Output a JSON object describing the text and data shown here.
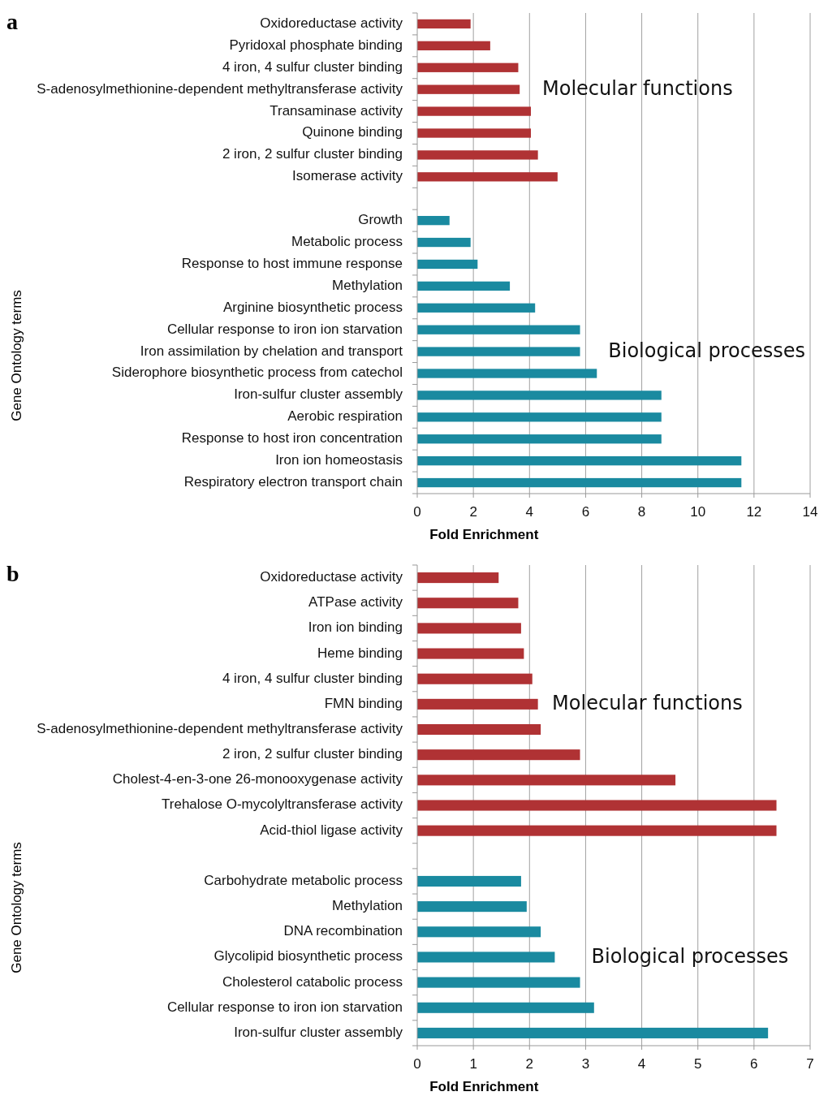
{
  "chart_data": [
    {
      "type": "bar",
      "title": "a",
      "orientation": "horizontal",
      "legend": false,
      "grid": "x",
      "xlabel": "Fold Enrichment",
      "ylabel": "Gene Ontology terms",
      "xlim": [
        0,
        14
      ],
      "xticks": [
        0,
        2,
        4,
        6,
        8,
        10,
        12,
        14
      ],
      "categories": [
        "Oxidoreductase activity",
        "Pyridoxal phosphate binding",
        "4 iron, 4 sulfur cluster binding",
        "S-adenosylmethionine-dependent methyltransferase activity",
        "Transaminase activity",
        "Quinone binding",
        "2 iron, 2 sulfur cluster binding",
        "Isomerase activity",
        null,
        "Growth",
        "Metabolic process",
        "Response to host immune response",
        "Methylation",
        "Arginine biosynthetic process",
        "Cellular response to iron ion starvation",
        "Iron assimilation by chelation and transport",
        "Siderophore biosynthetic process from catechol",
        "Iron-sulfur cluster assembly",
        "Aerobic respiration",
        "Response to host iron concentration",
        "Iron ion homeostasis",
        "Respiratory electron transport chain"
      ],
      "series": [
        {
          "name": "Molecular functions",
          "color": "#b03234",
          "values": [
            1.9,
            2.6,
            3.6,
            3.65,
            4.05,
            4.05,
            4.3,
            5.0,
            null,
            null,
            null,
            null,
            null,
            null,
            null,
            null,
            null,
            null,
            null,
            null,
            null,
            null
          ]
        },
        {
          "name": "Biological processes",
          "color": "#1a8aa0",
          "values": [
            null,
            null,
            null,
            null,
            null,
            null,
            null,
            null,
            null,
            1.15,
            1.9,
            2.15,
            3.3,
            4.2,
            5.8,
            5.8,
            6.4,
            8.7,
            8.7,
            8.7,
            11.55,
            11.55
          ]
        }
      ]
    },
    {
      "type": "bar",
      "title": "b",
      "orientation": "horizontal",
      "legend": false,
      "grid": "x",
      "xlabel": "Fold Enrichment",
      "ylabel": "Gene Ontology terms",
      "xlim": [
        0,
        7
      ],
      "xticks": [
        0,
        1,
        2,
        3,
        4,
        5,
        6,
        7
      ],
      "categories": [
        "Oxidoreductase activity",
        "ATPase activity",
        "Iron ion binding",
        "Heme binding",
        "4 iron, 4 sulfur cluster binding",
        "FMN binding",
        "S-adenosylmethionine-dependent methyltransferase activity",
        "2 iron, 2 sulfur cluster binding",
        "Cholest-4-en-3-one 26-monooxygenase activity",
        "Trehalose O-mycolyltransferase activity",
        "Acid-thiol ligase activity",
        null,
        "Carbohydrate metabolic process",
        "Methylation",
        "DNA recombination",
        "Glycolipid biosynthetic process",
        "Cholesterol catabolic process",
        "Cellular response to iron ion starvation",
        "Iron-sulfur cluster assembly"
      ],
      "series": [
        {
          "name": "Molecular functions",
          "color": "#b03234",
          "values": [
            1.45,
            1.8,
            1.85,
            1.9,
            2.05,
            2.15,
            2.2,
            2.9,
            4.6,
            6.4,
            6.4,
            null,
            null,
            null,
            null,
            null,
            null,
            null,
            null
          ]
        },
        {
          "name": "Biological processes",
          "color": "#1a8aa0",
          "values": [
            null,
            null,
            null,
            null,
            null,
            null,
            null,
            null,
            null,
            null,
            null,
            null,
            1.85,
            1.95,
            2.2,
            2.45,
            2.9,
            3.15,
            6.25
          ]
        }
      ]
    }
  ]
}
